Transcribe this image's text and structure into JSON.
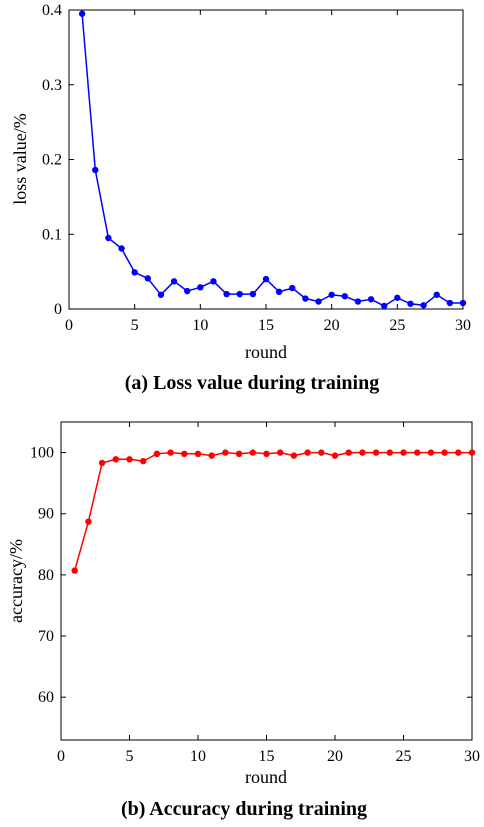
{
  "chart_data": [
    {
      "type": "line",
      "caption": "(a) Loss value during training",
      "xlabel": "round",
      "ylabel": "loss value/%",
      "xlim": [
        0,
        30
      ],
      "ylim": [
        0,
        0.4
      ],
      "xticks": [
        0,
        5,
        10,
        15,
        20,
        25,
        30
      ],
      "yticks": [
        0,
        0.1,
        0.2,
        0.3,
        0.4
      ],
      "xtick_labels": [
        "0",
        "5",
        "10",
        "15",
        "20",
        "25",
        "30"
      ],
      "ytick_labels": [
        "0",
        "0.1",
        "0.2",
        "0.3",
        "0.4"
      ],
      "color": "#0000ff",
      "grid": false,
      "series": [
        {
          "x": [
            1,
            2,
            3,
            4,
            5,
            6,
            7,
            8,
            9,
            10,
            11,
            12,
            13,
            14,
            15,
            16,
            17,
            18,
            19,
            20,
            21,
            22,
            23,
            24,
            25,
            26,
            27,
            28,
            29,
            30
          ],
          "values": [
            0.395,
            0.186,
            0.095,
            0.081,
            0.049,
            0.041,
            0.019,
            0.037,
            0.024,
            0.029,
            0.037,
            0.02,
            0.02,
            0.02,
            0.04,
            0.023,
            0.028,
            0.014,
            0.01,
            0.019,
            0.017,
            0.01,
            0.013,
            0.004,
            0.015,
            0.007,
            0.005,
            0.019,
            0.008,
            0.008
          ]
        }
      ]
    },
    {
      "type": "line",
      "caption": "(b) Accuracy during training",
      "xlabel": "round",
      "ylabel": "accuracy/%",
      "xlim": [
        0,
        30
      ],
      "ylim": [
        53,
        105
      ],
      "xticks": [
        0,
        5,
        10,
        15,
        20,
        25,
        30
      ],
      "yticks": [
        60,
        70,
        80,
        90,
        100
      ],
      "xtick_labels": [
        "0",
        "5",
        "10",
        "15",
        "20",
        "25",
        "30"
      ],
      "ytick_labels": [
        "60",
        "70",
        "80",
        "90",
        "100"
      ],
      "color": "#ff0000",
      "grid": false,
      "series": [
        {
          "x": [
            1,
            2,
            3,
            4,
            5,
            6,
            7,
            8,
            9,
            10,
            11,
            12,
            13,
            14,
            15,
            16,
            17,
            18,
            19,
            20,
            21,
            22,
            23,
            24,
            25,
            26,
            27,
            28,
            29,
            30
          ],
          "values": [
            80.7,
            88.7,
            98.3,
            98.9,
            98.9,
            98.6,
            99.8,
            100,
            99.8,
            99.8,
            99.5,
            100,
            99.8,
            100,
            99.8,
            100,
            99.5,
            100,
            100,
            99.5,
            100,
            100,
            100,
            100,
            100,
            100,
            100,
            100,
            100,
            100
          ]
        }
      ]
    }
  ]
}
